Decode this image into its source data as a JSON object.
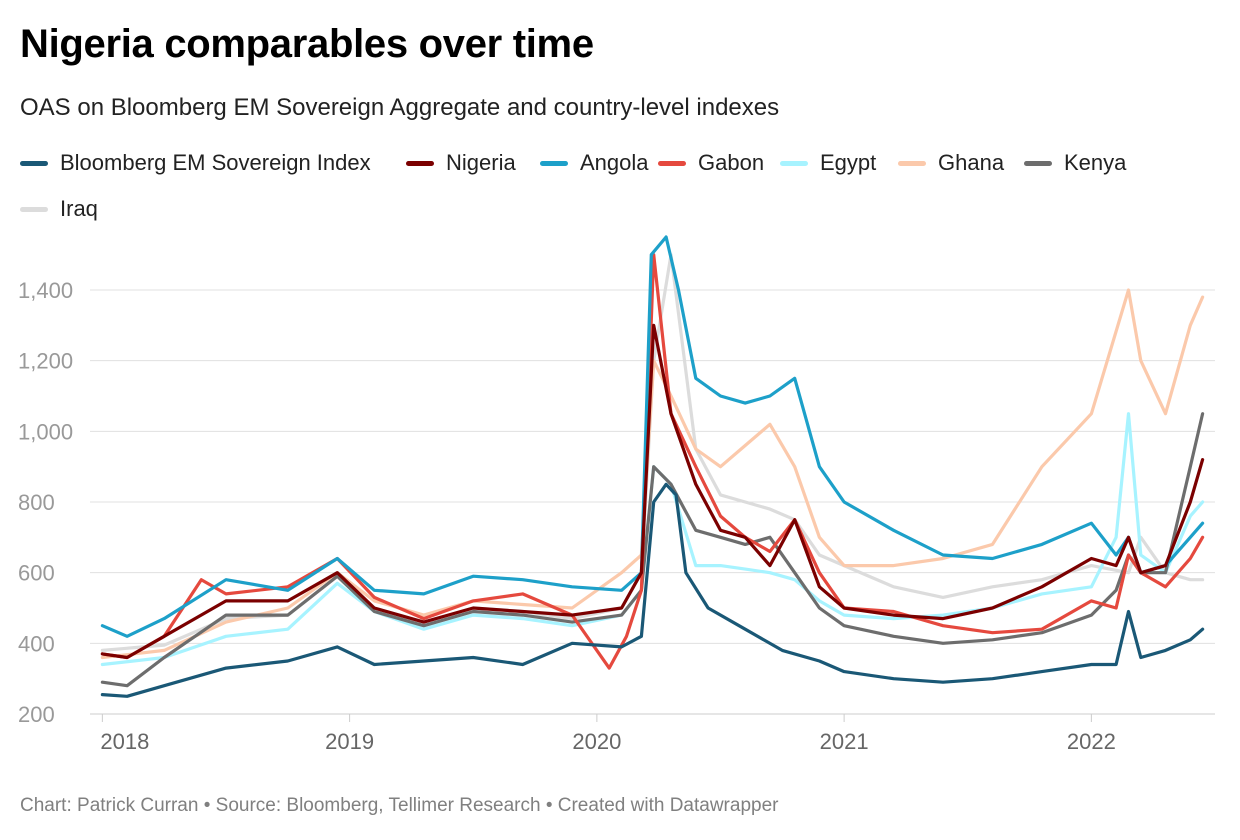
{
  "title": "Nigeria comparables over time",
  "subtitle": "OAS on Bloomberg EM Sovereign Aggregate and country-level indexes",
  "footer": "Chart: Patrick Curran • Source: Bloomberg, Tellimer Research • Created with Datawrapper",
  "chart_data": {
    "type": "line",
    "title": "Nigeria comparables over time",
    "subtitle": "OAS on Bloomberg EM Sovereign Aggregate and country-level indexes",
    "xlabel": "",
    "ylabel": "",
    "xlim": [
      2017.95,
      2022.5
    ],
    "ylim": [
      200,
      1600
    ],
    "yticks": [
      200,
      400,
      600,
      800,
      1000,
      1200,
      1400
    ],
    "ytick_labels": [
      "200",
      "400",
      "600",
      "800",
      "1,000",
      "1,200",
      "1,400"
    ],
    "xticks": [
      2018,
      2019,
      2020,
      2021,
      2022
    ],
    "xtick_labels": [
      "2018",
      "2019",
      "2020",
      "2021",
      "2022"
    ],
    "grid": true,
    "legend_position": "top",
    "series": [
      {
        "name": "Iraq",
        "color": "#dcdcdc",
        "x": [
          2018.0,
          2018.25,
          2018.5,
          2018.75,
          2018.95,
          2019.1,
          2019.3,
          2019.5,
          2019.7,
          2019.9,
          2020.1,
          2020.18,
          2020.23,
          2020.3,
          2020.4,
          2020.5,
          2020.6,
          2020.7,
          2020.8,
          2020.9,
          2021.0,
          2021.2,
          2021.4,
          2021.6,
          2021.8,
          2022.0,
          2022.15,
          2022.2,
          2022.3,
          2022.4,
          2022.45
        ],
        "y": [
          380,
          395,
          470,
          480,
          590,
          500,
          450,
          500,
          490,
          470,
          500,
          600,
          1200,
          1500,
          950,
          820,
          800,
          780,
          750,
          650,
          620,
          560,
          530,
          560,
          580,
          620,
          600,
          700,
          600,
          580,
          580
        ]
      },
      {
        "name": "Ghana",
        "color": "#fbc9ab",
        "x": [
          2018.0,
          2018.25,
          2018.5,
          2018.75,
          2018.95,
          2019.1,
          2019.3,
          2019.5,
          2019.7,
          2019.9,
          2020.1,
          2020.18,
          2020.23,
          2020.3,
          2020.4,
          2020.5,
          2020.6,
          2020.7,
          2020.8,
          2020.9,
          2021.0,
          2021.2,
          2021.4,
          2021.6,
          2021.8,
          2022.0,
          2022.15,
          2022.2,
          2022.3,
          2022.4,
          2022.45
        ],
        "y": [
          360,
          380,
          460,
          500,
          600,
          520,
          480,
          520,
          510,
          500,
          600,
          650,
          1200,
          1100,
          950,
          900,
          960,
          1020,
          900,
          700,
          620,
          620,
          640,
          680,
          900,
          1050,
          1400,
          1200,
          1050,
          1300,
          1380
        ]
      },
      {
        "name": "Egypt",
        "color": "#a7f3ff",
        "x": [
          2018.0,
          2018.25,
          2018.5,
          2018.75,
          2018.95,
          2019.1,
          2019.3,
          2019.5,
          2019.7,
          2019.9,
          2020.1,
          2020.18,
          2020.23,
          2020.3,
          2020.4,
          2020.5,
          2020.6,
          2020.7,
          2020.8,
          2020.9,
          2021.0,
          2021.2,
          2021.4,
          2021.6,
          2021.8,
          2022.0,
          2022.1,
          2022.15,
          2022.2,
          2022.3,
          2022.4,
          2022.45
        ],
        "y": [
          340,
          360,
          420,
          440,
          570,
          490,
          440,
          480,
          470,
          450,
          480,
          550,
          900,
          850,
          620,
          620,
          610,
          600,
          580,
          520,
          480,
          470,
          480,
          500,
          540,
          560,
          700,
          1050,
          650,
          600,
          760,
          800
        ]
      },
      {
        "name": "Kenya",
        "color": "#6d6d6d",
        "x": [
          2018.0,
          2018.1,
          2018.25,
          2018.5,
          2018.75,
          2018.95,
          2019.1,
          2019.3,
          2019.5,
          2019.7,
          2019.9,
          2020.1,
          2020.18,
          2020.23,
          2020.3,
          2020.4,
          2020.5,
          2020.6,
          2020.7,
          2020.8,
          2020.9,
          2021.0,
          2021.2,
          2021.4,
          2021.6,
          2021.8,
          2022.0,
          2022.1,
          2022.15,
          2022.2,
          2022.3,
          2022.4,
          2022.45
        ],
        "y": [
          290,
          280,
          360,
          480,
          480,
          590,
          490,
          450,
          490,
          480,
          460,
          480,
          550,
          900,
          850,
          720,
          700,
          680,
          700,
          600,
          500,
          450,
          420,
          400,
          410,
          430,
          480,
          550,
          650,
          600,
          600,
          900,
          1050
        ]
      },
      {
        "name": "Gabon",
        "color": "#e5493e",
        "x": [
          2018.0,
          2018.1,
          2018.25,
          2018.4,
          2018.5,
          2018.75,
          2018.95,
          2019.1,
          2019.3,
          2019.5,
          2019.7,
          2019.9,
          2020.05,
          2020.12,
          2020.18,
          2020.23,
          2020.3,
          2020.4,
          2020.5,
          2020.6,
          2020.7,
          2020.8,
          2020.9,
          2021.0,
          2021.2,
          2021.4,
          2021.6,
          2021.8,
          2022.0,
          2022.1,
          2022.15,
          2022.2,
          2022.3,
          2022.4,
          2022.45
        ],
        "y": [
          370,
          360,
          420,
          580,
          540,
          560,
          640,
          530,
          470,
          520,
          540,
          480,
          330,
          420,
          550,
          1500,
          1050,
          900,
          760,
          700,
          660,
          750,
          600,
          500,
          490,
          450,
          430,
          440,
          520,
          500,
          650,
          600,
          560,
          640,
          700
        ]
      },
      {
        "name": "Angola",
        "color": "#1da0c9",
        "x": [
          2018.0,
          2018.1,
          2018.25,
          2018.5,
          2018.75,
          2018.95,
          2019.1,
          2019.3,
          2019.5,
          2019.7,
          2019.9,
          2020.1,
          2020.18,
          2020.22,
          2020.28,
          2020.33,
          2020.4,
          2020.5,
          2020.6,
          2020.7,
          2020.8,
          2020.9,
          2021.0,
          2021.2,
          2021.4,
          2021.6,
          2021.8,
          2022.0,
          2022.1,
          2022.15,
          2022.2,
          2022.3,
          2022.4,
          2022.45
        ],
        "y": [
          450,
          420,
          470,
          580,
          550,
          640,
          550,
          540,
          590,
          580,
          560,
          550,
          600,
          1500,
          1550,
          1400,
          1150,
          1100,
          1080,
          1100,
          1150,
          900,
          800,
          720,
          650,
          640,
          680,
          740,
          650,
          700,
          600,
          620,
          700,
          740
        ]
      },
      {
        "name": "Nigeria",
        "color": "#7b0000",
        "x": [
          2018.0,
          2018.1,
          2018.25,
          2018.5,
          2018.75,
          2018.95,
          2019.1,
          2019.3,
          2019.5,
          2019.7,
          2019.9,
          2020.1,
          2020.18,
          2020.23,
          2020.3,
          2020.4,
          2020.5,
          2020.6,
          2020.7,
          2020.8,
          2020.9,
          2021.0,
          2021.2,
          2021.4,
          2021.6,
          2021.8,
          2022.0,
          2022.1,
          2022.15,
          2022.2,
          2022.3,
          2022.4,
          2022.45
        ],
        "y": [
          370,
          360,
          420,
          520,
          520,
          600,
          500,
          460,
          500,
          490,
          480,
          500,
          600,
          1300,
          1050,
          850,
          720,
          700,
          620,
          750,
          560,
          500,
          480,
          470,
          500,
          560,
          640,
          620,
          700,
          600,
          620,
          800,
          920
        ]
      },
      {
        "name": "Bloomberg EM Sovereign Index",
        "color": "#1a5876",
        "x": [
          2018.0,
          2018.1,
          2018.25,
          2018.5,
          2018.75,
          2018.95,
          2019.1,
          2019.3,
          2019.5,
          2019.7,
          2019.9,
          2020.1,
          2020.18,
          2020.23,
          2020.28,
          2020.32,
          2020.36,
          2020.45,
          2020.6,
          2020.75,
          2020.9,
          2021.0,
          2021.2,
          2021.4,
          2021.6,
          2021.8,
          2022.0,
          2022.1,
          2022.15,
          2022.2,
          2022.3,
          2022.4,
          2022.45
        ],
        "y": [
          255,
          250,
          280,
          330,
          350,
          390,
          340,
          350,
          360,
          340,
          400,
          390,
          420,
          800,
          850,
          820,
          600,
          500,
          440,
          380,
          350,
          320,
          300,
          290,
          300,
          320,
          340,
          340,
          490,
          360,
          380,
          410,
          440
        ]
      }
    ]
  }
}
